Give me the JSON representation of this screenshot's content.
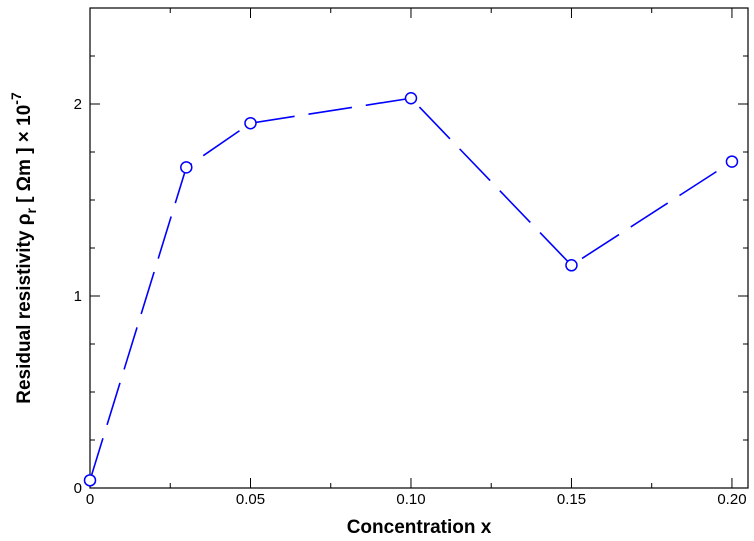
{
  "chart_data": {
    "type": "line",
    "xlabel": "Concentration x",
    "ylabel": {
      "main": "Residual resistivity ρ",
      "sub": "r",
      "unit": " [ Ωm ] × 10",
      "exp": "-7"
    },
    "xlim": [
      0,
      0.205
    ],
    "ylim": [
      0,
      2.5
    ],
    "xticks": [
      {
        "value": 0,
        "label": "0"
      },
      {
        "value": 0.05,
        "label": "0.05"
      },
      {
        "value": 0.1,
        "label": "0.10"
      },
      {
        "value": 0.15,
        "label": "0.15"
      },
      {
        "value": 0.2,
        "label": "0.20"
      }
    ],
    "yticks": [
      {
        "value": 0,
        "label": "0"
      },
      {
        "value": 1,
        "label": "1"
      },
      {
        "value": 2,
        "label": "2"
      }
    ],
    "x_minor_step": 0.025,
    "y_minor_step": 0.25,
    "grid": false,
    "series": [
      {
        "color": "#0000ff",
        "line_style": "dashed",
        "marker": "open-circle",
        "x": [
          0,
          0.03,
          0.05,
          0.1,
          0.15,
          0.2
        ],
        "y": [
          0.04,
          1.67,
          1.9,
          2.03,
          1.16,
          1.7
        ]
      }
    ]
  }
}
